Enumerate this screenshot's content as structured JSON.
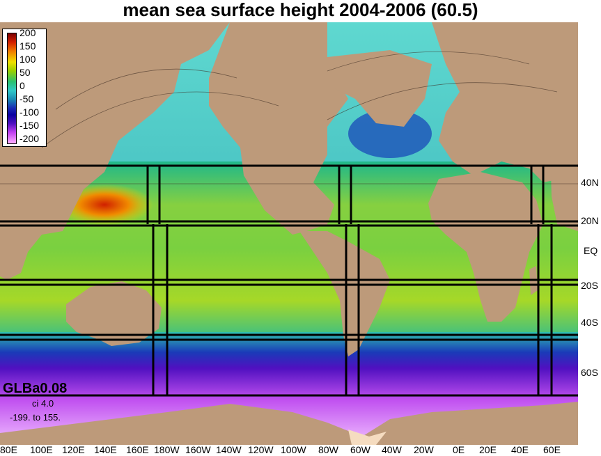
{
  "title": "mean sea surface height 2004-2006 (60.5)",
  "legend": {
    "ticks": [
      "200",
      "150",
      "100",
      "50",
      "0",
      "-50",
      "-100",
      "-150",
      "-200"
    ],
    "colors": {
      "dark_red": "#7a0000",
      "yellow": "#f0e000",
      "green": "#2ac070",
      "cyan": "#30c8c8",
      "blue": "#1a2ab4",
      "violet": "#c040f0",
      "light_violet": "#ffb0ff"
    }
  },
  "info": {
    "name": "GLBa0.08",
    "ci": "ci 4.0",
    "range": "-199. to 155."
  },
  "lat_labels": [
    "40N",
    "20N",
    "EQ",
    "20S",
    "40S",
    "60S"
  ],
  "lon_labels": [
    "80E",
    "100E",
    "120E",
    "140E",
    "160E",
    "180W",
    "160W",
    "140W",
    "120W",
    "100W",
    "80W",
    "60W",
    "40W",
    "20W",
    "0E",
    "20E",
    "40E",
    "60E"
  ],
  "colors": {
    "land": "#bd9a7a",
    "antarctic_shelf": "#f5dcc0",
    "box_lines": "#000000"
  }
}
